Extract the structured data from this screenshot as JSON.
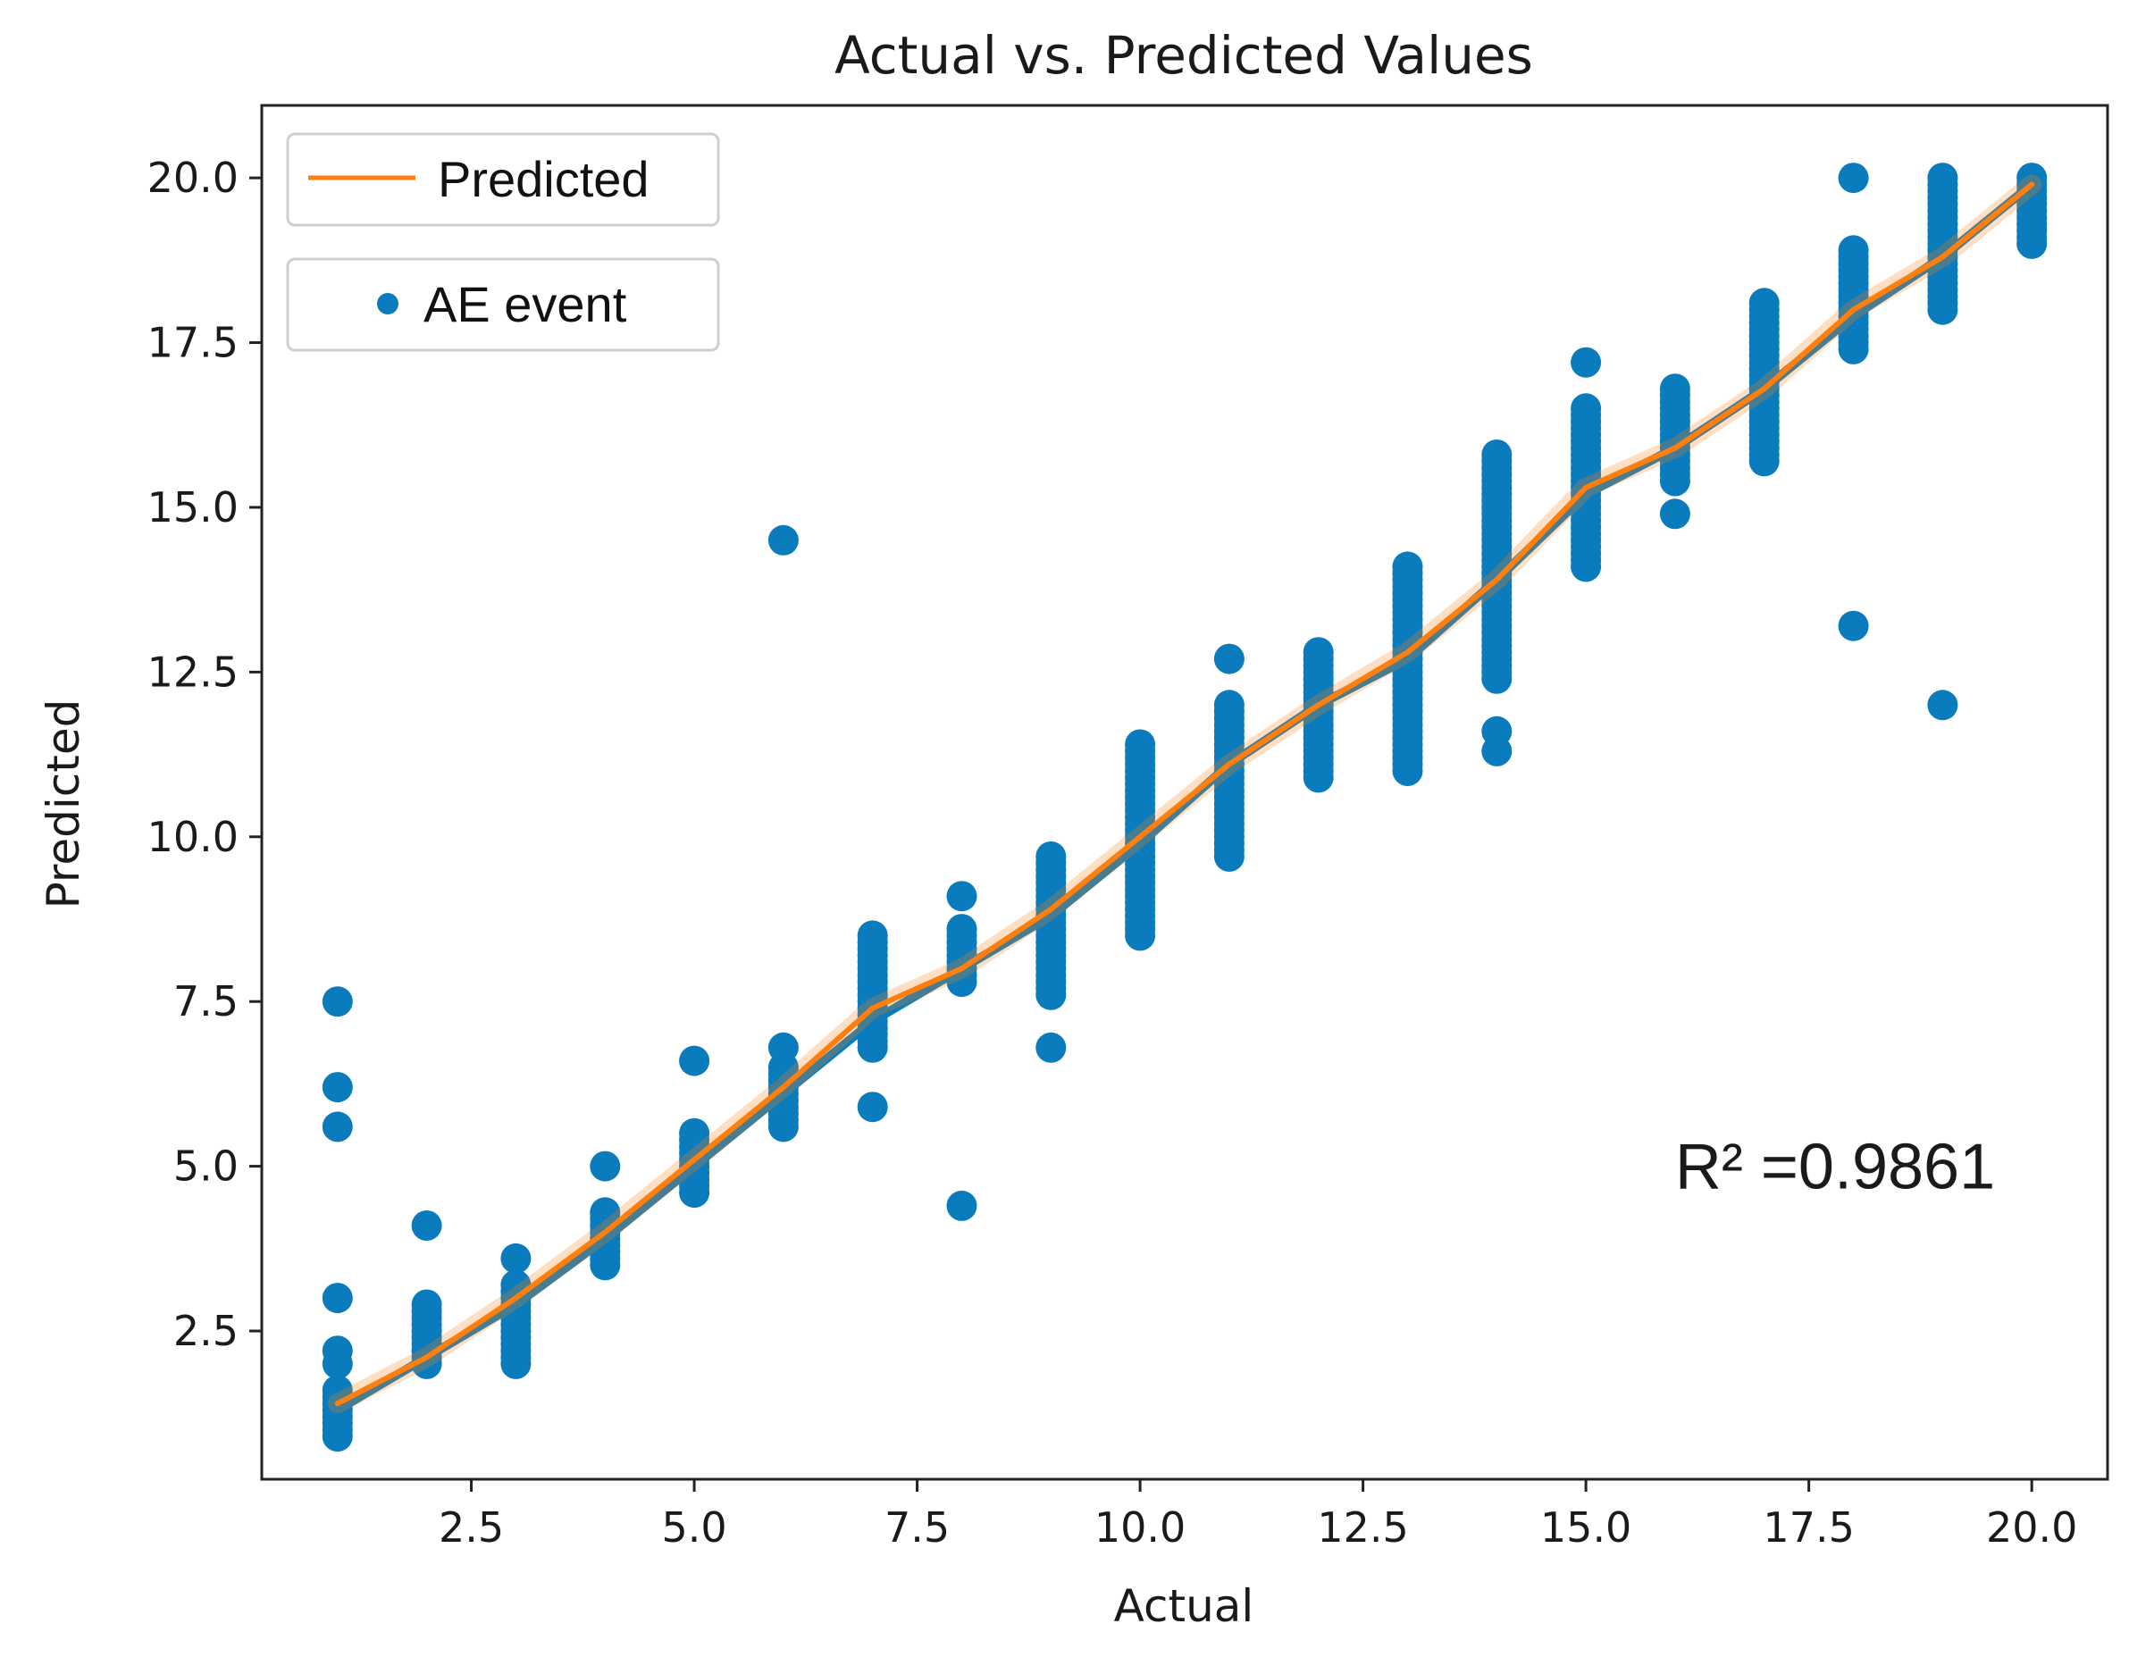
{
  "chart_data": {
    "type": "scatter",
    "title": "Actual vs. Predicted Values",
    "xlabel": "Actual",
    "ylabel": "Predicted",
    "xlim": [
      0.15,
      20.85
    ],
    "ylim": [
      0.25,
      21.1
    ],
    "grid": false,
    "xticks": [
      2.5,
      5.0,
      7.5,
      10.0,
      12.5,
      15.0,
      17.5,
      20.0
    ],
    "xtick_labels": [
      "2.5",
      "5.0",
      "7.5",
      "10.0",
      "12.5",
      "15.0",
      "17.5",
      "20.0"
    ],
    "yticks": [
      2.5,
      5.0,
      7.5,
      10.0,
      12.5,
      15.0,
      17.5,
      20.0
    ],
    "ytick_labels": [
      "2.5",
      "5.0",
      "7.5",
      "10.0",
      "12.5",
      "15.0",
      "17.5",
      "20.0"
    ],
    "legend": {
      "placement": "top-left",
      "entries": [
        {
          "label": "Predicted",
          "marker": "line",
          "color": "#ff7f0e"
        },
        {
          "label": "AE event",
          "marker": "dot",
          "color": "#0a7bbd"
        }
      ]
    },
    "annotation": {
      "text": "R² =0.9861",
      "x": 16.0,
      "y": 5.0
    },
    "series": [
      {
        "name": "AE event",
        "kind": "scatter",
        "color": "#0a7bbd",
        "columns": [
          {
            "x": 1,
            "min": 0.9,
            "max": 1.6,
            "extra": [
              2.0,
              2.2,
              3.0,
              5.6,
              6.2,
              7.5
            ]
          },
          {
            "x": 2,
            "min": 2.0,
            "max": 2.9,
            "extra": [
              4.1
            ]
          },
          {
            "x": 3,
            "min": 2.0,
            "max": 3.2,
            "extra": [
              3.6
            ]
          },
          {
            "x": 4,
            "min": 3.5,
            "max": 4.3,
            "extra": [
              5.0
            ]
          },
          {
            "x": 5,
            "min": 4.6,
            "max": 5.5,
            "extra": [
              6.6
            ]
          },
          {
            "x": 6,
            "min": 5.6,
            "max": 6.5,
            "extra": [
              6.8,
              14.5
            ]
          },
          {
            "x": 7,
            "min": 6.8,
            "max": 8.5,
            "extra": [
              5.9
            ]
          },
          {
            "x": 8,
            "min": 7.8,
            "max": 8.6,
            "extra": [
              9.1,
              4.4
            ]
          },
          {
            "x": 9,
            "min": 7.6,
            "max": 9.7,
            "extra": [
              6.8
            ]
          },
          {
            "x": 10,
            "min": 8.5,
            "max": 11.4,
            "extra": []
          },
          {
            "x": 11,
            "min": 9.7,
            "max": 12.0,
            "extra": [
              12.7
            ]
          },
          {
            "x": 12,
            "min": 10.9,
            "max": 12.8,
            "extra": []
          },
          {
            "x": 13,
            "min": 11.0,
            "max": 14.1,
            "extra": []
          },
          {
            "x": 14,
            "min": 12.4,
            "max": 15.8,
            "extra": [
              11.3,
              11.6
            ]
          },
          {
            "x": 15,
            "min": 14.1,
            "max": 16.5,
            "extra": [
              17.2
            ]
          },
          {
            "x": 16,
            "min": 15.4,
            "max": 16.8,
            "extra": [
              14.9
            ]
          },
          {
            "x": 17,
            "min": 15.7,
            "max": 18.1,
            "extra": []
          },
          {
            "x": 18,
            "min": 17.4,
            "max": 18.9,
            "extra": [
              20.0,
              13.2
            ]
          },
          {
            "x": 19,
            "min": 18.0,
            "max": 20.0,
            "extra": [
              12.0
            ]
          },
          {
            "x": 20,
            "min": 19.0,
            "max": 20.0,
            "extra": []
          }
        ]
      },
      {
        "name": "Fit (blue)",
        "kind": "line",
        "color": "#0a7bbd",
        "x": [
          1,
          2,
          3,
          4,
          5,
          6,
          7,
          8,
          9,
          10,
          11,
          12,
          13,
          14,
          15,
          16,
          17,
          18,
          19,
          20
        ],
        "y": [
          1.3,
          2.1,
          2.9,
          3.9,
          5.0,
          6.1,
          7.2,
          8.0,
          8.8,
          9.9,
          11.1,
          12.0,
          12.7,
          13.9,
          15.2,
          15.9,
          16.8,
          17.9,
          18.8,
          19.9
        ]
      },
      {
        "name": "Predicted",
        "kind": "line",
        "color": "#ff7f0e",
        "x": [
          1,
          2,
          3,
          4,
          5,
          6,
          7,
          8,
          9,
          10,
          11,
          12,
          13,
          14,
          15,
          16,
          17,
          18,
          19,
          20
        ],
        "y": [
          1.4,
          2.1,
          3.0,
          4.0,
          5.1,
          6.2,
          7.4,
          8.0,
          8.9,
          10.0,
          11.1,
          12.0,
          12.8,
          13.9,
          15.3,
          15.9,
          16.8,
          18.0,
          18.8,
          19.9
        ]
      }
    ]
  }
}
